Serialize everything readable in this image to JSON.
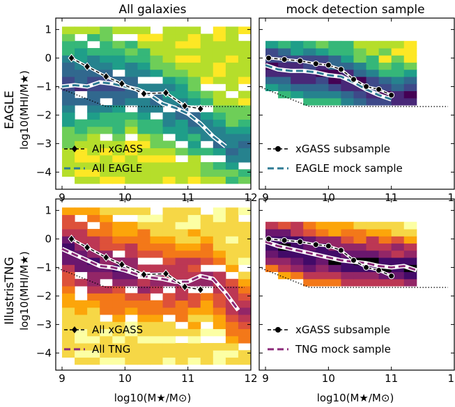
{
  "figure": {
    "col_titles": [
      "All galaxies",
      "mock detection sample"
    ],
    "row_titles": [
      "EAGLE",
      "IllustrisTNG"
    ],
    "ylabel": "log10(MHI/M★)",
    "xlabel": "log10(M★/M⊙)",
    "x_ticks": [
      "9",
      "10",
      "11",
      "12"
    ],
    "y_ticks": [
      "1",
      "0",
      "−1",
      "−2",
      "−3",
      "−4"
    ]
  },
  "colors": {
    "xgass": "#000000",
    "eagle_line": "#2e7b94",
    "tng_line": "#8b2a79",
    "threshold": "#000000"
  },
  "chart_data": [
    {
      "type": "heatmap",
      "panel": "top-left",
      "column_title": "All galaxies",
      "row_title": "EAGLE",
      "colormap": "viridis",
      "xlim": [
        8.9,
        12.0
      ],
      "ylim": [
        -4.6,
        1.4
      ],
      "legend_position": "lower-left",
      "series": [
        {
          "name": "All xGASS",
          "x": [
            9.15,
            9.4,
            9.7,
            9.95,
            10.3,
            10.65,
            10.95,
            11.2
          ],
          "y": [
            0.0,
            -0.3,
            -0.65,
            -0.9,
            -1.25,
            -1.22,
            -1.68,
            -1.78
          ]
        },
        {
          "name": "All EAGLE",
          "x": [
            9.0,
            9.2,
            9.4,
            9.6,
            9.8,
            10.0,
            10.2,
            10.4,
            10.6,
            10.8,
            11.0,
            11.2,
            11.4,
            11.6
          ],
          "y": [
            -1.0,
            -0.95,
            -1.0,
            -0.85,
            -0.9,
            -1.0,
            -1.1,
            -1.3,
            -1.6,
            -1.75,
            -1.95,
            -2.3,
            -2.75,
            -3.1
          ]
        }
      ],
      "threshold": {
        "x": [
          8.9,
          9.7,
          11.9
        ],
        "y": [
          -1.0,
          -1.7,
          -1.7
        ]
      }
    },
    {
      "type": "heatmap",
      "panel": "top-right",
      "column_title": "mock detection sample",
      "row_title": "EAGLE",
      "colormap": "viridis",
      "xlim": [
        8.9,
        12.0
      ],
      "ylim": [
        -4.6,
        1.4
      ],
      "legend_position": "lower-left",
      "series": [
        {
          "name": "xGASS subsample",
          "x": [
            9.05,
            9.3,
            9.55,
            9.8,
            10.0,
            10.2,
            10.4,
            10.6,
            10.8,
            11.0
          ],
          "y": [
            0.0,
            -0.05,
            -0.1,
            -0.2,
            -0.25,
            -0.4,
            -0.75,
            -1.0,
            -1.1,
            -1.3
          ]
        },
        {
          "name": "EAGLE mock sample",
          "x": [
            9.0,
            9.2,
            9.4,
            9.6,
            9.8,
            10.0,
            10.2,
            10.4,
            10.6,
            10.8,
            11.0
          ],
          "y": [
            -0.25,
            -0.4,
            -0.45,
            -0.45,
            -0.5,
            -0.6,
            -0.65,
            -0.85,
            -1.1,
            -1.3,
            -1.45
          ]
        }
      ],
      "threshold": {
        "x": [
          8.9,
          9.7,
          11.9
        ],
        "y": [
          -1.0,
          -1.7,
          -1.7
        ]
      }
    },
    {
      "type": "heatmap",
      "panel": "bottom-left",
      "column_title": "All galaxies",
      "row_title": "IllustrisTNG",
      "colormap": "inferno",
      "xlim": [
        8.9,
        12.0
      ],
      "ylim": [
        -4.6,
        1.4
      ],
      "legend_position": "lower-left",
      "series": [
        {
          "name": "All xGASS",
          "x": [
            9.15,
            9.4,
            9.7,
            9.95,
            10.3,
            10.65,
            10.95,
            11.2
          ],
          "y": [
            0.0,
            -0.3,
            -0.65,
            -0.9,
            -1.25,
            -1.22,
            -1.68,
            -1.78
          ]
        },
        {
          "name": "All TNG",
          "x": [
            9.0,
            9.2,
            9.4,
            9.6,
            9.8,
            10.0,
            10.2,
            10.4,
            10.6,
            10.8,
            11.0,
            11.2,
            11.4,
            11.6,
            11.8
          ],
          "y": [
            -0.35,
            -0.55,
            -0.75,
            -0.95,
            -1.0,
            -1.1,
            -1.25,
            -1.35,
            -1.4,
            -1.5,
            -1.5,
            -1.3,
            -1.4,
            -1.9,
            -2.5
          ]
        }
      ],
      "threshold": {
        "x": [
          8.9,
          9.7,
          11.9
        ],
        "y": [
          -1.0,
          -1.7,
          -1.7
        ]
      }
    },
    {
      "type": "heatmap",
      "panel": "bottom-right",
      "column_title": "mock detection sample",
      "row_title": "IllustrisTNG",
      "colormap": "inferno",
      "xlim": [
        8.9,
        12.0
      ],
      "ylim": [
        -4.6,
        1.4
      ],
      "legend_position": "lower-left",
      "series": [
        {
          "name": "xGASS subsample",
          "x": [
            9.05,
            9.3,
            9.55,
            9.8,
            10.0,
            10.2,
            10.4,
            10.6,
            10.8,
            11.0
          ],
          "y": [
            0.0,
            -0.05,
            -0.1,
            -0.2,
            -0.25,
            -0.4,
            -0.75,
            -1.0,
            -1.1,
            -1.3
          ]
        },
        {
          "name": "TNG mock sample",
          "x": [
            9.0,
            9.2,
            9.4,
            9.6,
            9.8,
            10.0,
            10.2,
            10.4,
            10.6,
            10.8,
            11.0,
            11.2,
            11.4
          ],
          "y": [
            -0.1,
            -0.25,
            -0.35,
            -0.45,
            -0.55,
            -0.65,
            -0.75,
            -0.8,
            -0.85,
            -0.95,
            -1.0,
            -0.95,
            -1.1
          ]
        }
      ],
      "threshold": {
        "x": [
          8.9,
          9.7,
          11.9
        ],
        "y": [
          -1.0,
          -1.7,
          -1.7
        ]
      }
    }
  ]
}
